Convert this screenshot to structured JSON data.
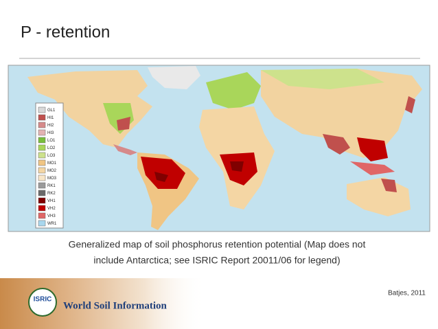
{
  "header": {
    "title": "P - retention"
  },
  "map": {
    "legend": [
      {
        "label": "GL1",
        "color": "#d9d9d9"
      },
      {
        "label": "HI1",
        "color": "#c0504d"
      },
      {
        "label": "HI2",
        "color": "#d68a8a"
      },
      {
        "label": "HI3",
        "color": "#e3b3b3"
      },
      {
        "label": "LO1",
        "color": "#78be3c"
      },
      {
        "label": "LO2",
        "color": "#a9d65a"
      },
      {
        "label": "LO3",
        "color": "#cde28c"
      },
      {
        "label": "MO1",
        "color": "#f0c584"
      },
      {
        "label": "MO2",
        "color": "#f4d6a4"
      },
      {
        "label": "MO3",
        "color": "#f8e6c8"
      },
      {
        "label": "RK1",
        "color": "#9a9a9a"
      },
      {
        "label": "RK2",
        "color": "#6a6a6a"
      },
      {
        "label": "VH1",
        "color": "#800000"
      },
      {
        "label": "VH2",
        "color": "#c00000"
      },
      {
        "label": "VH3",
        "color": "#e06666"
      },
      {
        "label": "WR1",
        "color": "#a9d7ee"
      }
    ]
  },
  "caption": [
    "Generalized map of soil phosphorus retention potential (Map does not",
    "include Antarctica; see ISRIC Report 20011/06 for legend)"
  ],
  "footer": {
    "citation": "Batjes, 2011",
    "logo": "ISRIC",
    "organization": "World Soil Information"
  }
}
